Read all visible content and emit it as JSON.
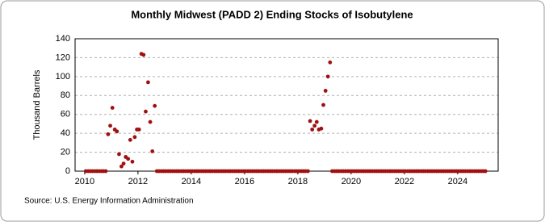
{
  "chart_data": {
    "type": "scatter",
    "title": "Monthly Midwest (PADD 2) Ending Stocks of Isobutylene",
    "y_label": "Thousand Barrels",
    "source": "Source: U.S. Energy Information Administration",
    "xlim": [
      2009.64,
      2025.52
    ],
    "xticks": [
      2010,
      2012,
      2014,
      2016,
      2018,
      2020,
      2022,
      2024
    ],
    "ylim": [
      0,
      140
    ],
    "yticks": [
      0,
      20,
      40,
      60,
      80,
      100,
      120,
      140
    ],
    "grid": true,
    "series": [
      {
        "color": "#a01010",
        "x": [
          2010.04,
          2010.13,
          2010.21,
          2010.29,
          2010.38,
          2010.46,
          2010.54,
          2010.63,
          2010.71,
          2010.79,
          2010.88,
          2010.96,
          2011.04,
          2011.13,
          2011.21,
          2011.29,
          2011.38,
          2011.46,
          2011.54,
          2011.63,
          2011.71,
          2011.79,
          2011.88,
          2011.96,
          2012.04,
          2012.13,
          2012.21,
          2012.29,
          2012.38,
          2012.46,
          2012.54,
          2012.63,
          2012.71,
          2012.79,
          2012.88,
          2012.96,
          2013.04,
          2013.13,
          2013.21,
          2013.29,
          2013.38,
          2013.46,
          2013.54,
          2013.63,
          2013.71,
          2013.79,
          2013.88,
          2013.96,
          2014.04,
          2014.13,
          2014.21,
          2014.29,
          2014.38,
          2014.46,
          2014.54,
          2014.63,
          2014.71,
          2014.79,
          2014.88,
          2014.96,
          2015.04,
          2015.13,
          2015.21,
          2015.29,
          2015.38,
          2015.46,
          2015.54,
          2015.63,
          2015.71,
          2015.79,
          2015.88,
          2015.96,
          2016.04,
          2016.13,
          2016.21,
          2016.29,
          2016.38,
          2016.46,
          2016.54,
          2016.63,
          2016.71,
          2016.79,
          2016.88,
          2016.96,
          2017.04,
          2017.13,
          2017.21,
          2017.29,
          2017.38,
          2017.46,
          2017.54,
          2017.63,
          2017.71,
          2017.79,
          2017.88,
          2017.96,
          2018.04,
          2018.13,
          2018.21,
          2018.29,
          2018.38,
          2018.46,
          2018.54,
          2018.63,
          2018.71,
          2018.79,
          2018.88,
          2018.96,
          2019.04,
          2019.13,
          2019.21,
          2019.29,
          2019.38,
          2019.46,
          2019.54,
          2019.63,
          2019.71,
          2019.79,
          2019.88,
          2019.96,
          2020.04,
          2020.13,
          2020.21,
          2020.29,
          2020.38,
          2020.46,
          2020.54,
          2020.63,
          2020.71,
          2020.79,
          2020.88,
          2020.96,
          2021.04,
          2021.13,
          2021.21,
          2021.29,
          2021.38,
          2021.46,
          2021.54,
          2021.63,
          2021.71,
          2021.79,
          2021.88,
          2021.96,
          2022.04,
          2022.13,
          2022.21,
          2022.29,
          2022.38,
          2022.46,
          2022.54,
          2022.63,
          2022.71,
          2022.79,
          2022.88,
          2022.96,
          2023.04,
          2023.13,
          2023.21,
          2023.29,
          2023.38,
          2023.46,
          2023.54,
          2023.63,
          2023.71,
          2023.79,
          2023.88,
          2023.96,
          2024.04,
          2024.13,
          2024.21,
          2024.29,
          2024.38,
          2024.46,
          2024.54,
          2024.63,
          2024.71,
          2024.79,
          2024.88,
          2024.96,
          2025.04
        ],
        "values": [
          0,
          0,
          0,
          0,
          0,
          0,
          0,
          0,
          0,
          0,
          39,
          48,
          67,
          44,
          42,
          18,
          5,
          8,
          15,
          13,
          33,
          10,
          36,
          44,
          44,
          124,
          123,
          63,
          94,
          52,
          21,
          69,
          0,
          0,
          0,
          0,
          0,
          0,
          0,
          0,
          0,
          0,
          0,
          0,
          0,
          0,
          0,
          0,
          0,
          0,
          0,
          0,
          0,
          0,
          0,
          0,
          0,
          0,
          0,
          0,
          0,
          0,
          0,
          0,
          0,
          0,
          0,
          0,
          0,
          0,
          0,
          0,
          0,
          0,
          0,
          0,
          0,
          0,
          0,
          0,
          0,
          0,
          0,
          0,
          0,
          0,
          0,
          0,
          0,
          0,
          0,
          0,
          0,
          0,
          0,
          0,
          0,
          0,
          0,
          0,
          0,
          53,
          44,
          48,
          52,
          44,
          45,
          70,
          85,
          100,
          115,
          0,
          0,
          0,
          0,
          0,
          0,
          0,
          0,
          0,
          0,
          0,
          0,
          0,
          0,
          0,
          0,
          0,
          0,
          0,
          0,
          0,
          0,
          0,
          0,
          0,
          0,
          0,
          0,
          0,
          0,
          0,
          0,
          0,
          0,
          0,
          0,
          0,
          0,
          0,
          0,
          0,
          0,
          0,
          0,
          0,
          0,
          0,
          0,
          0,
          0,
          0,
          0,
          0,
          0,
          0,
          0,
          0,
          0,
          0,
          0,
          0,
          0,
          0,
          0,
          0,
          0,
          0,
          0,
          0,
          0
        ]
      }
    ]
  }
}
